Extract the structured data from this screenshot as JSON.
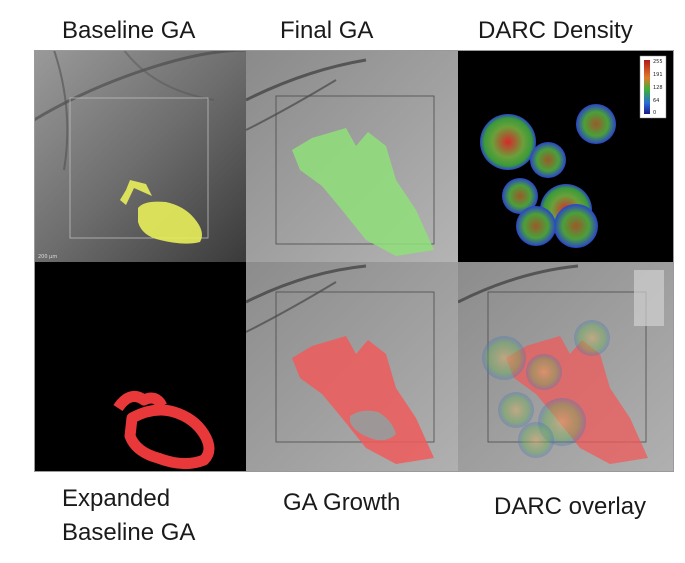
{
  "labels": {
    "baseline_ga": "Baseline GA",
    "final_ga": "Final GA",
    "darc_density": "DARC Density",
    "expanded_line1": "Expanded",
    "expanded_line2": "Baseline GA",
    "ga_growth": "GA Growth",
    "darc_overlay": "DARC overlay"
  },
  "scale_bar_text": "200 µm",
  "colorbar_ticks": [
    "255",
    "191",
    "128",
    "64",
    "0"
  ],
  "colors": {
    "baseline_ga": "#e8ee5a",
    "final_ga": "#8fe07a",
    "expanded_ring": "#e8383a",
    "ga_growth": "#f05a5a",
    "darc_core": "#d42a2a",
    "darc_mid": "#3a9a3a",
    "darc_edge": "#2a44c8"
  }
}
